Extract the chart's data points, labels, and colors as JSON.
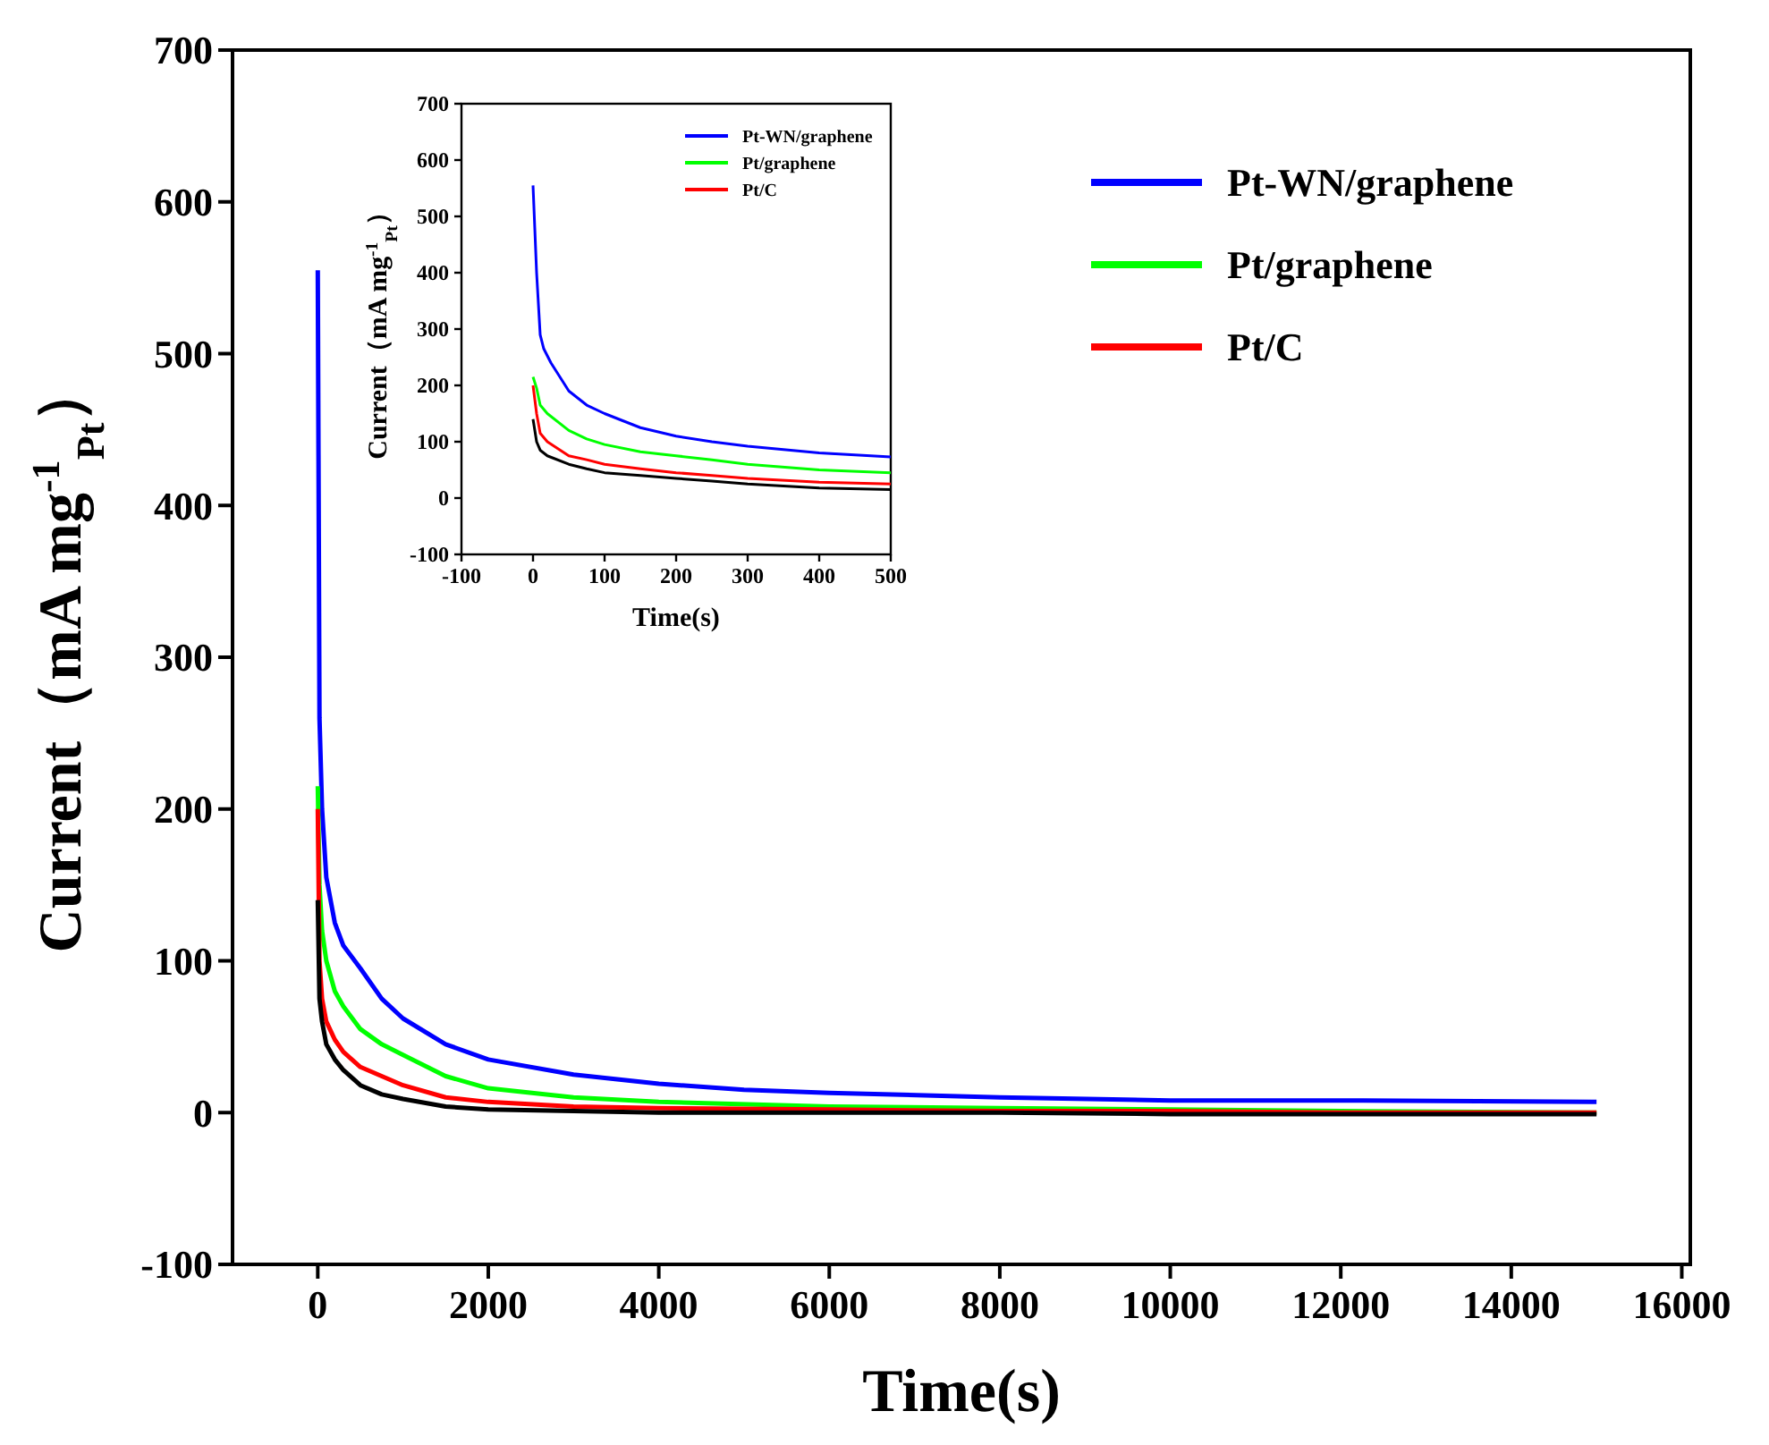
{
  "chart_data": [
    {
      "type": "line",
      "xlabel": "Time(s)",
      "ylabel": "Current（mA mg$^{-1}$$_{Pt}$）",
      "xlim": [
        -1000,
        16100
      ],
      "ylim": [
        -100,
        700
      ],
      "xticks": [
        0,
        2000,
        4000,
        6000,
        8000,
        10000,
        12000,
        14000,
        16000
      ],
      "yticks": [
        -100,
        0,
        100,
        200,
        300,
        400,
        500,
        600,
        700
      ],
      "legend": "top right",
      "grid": false,
      "series": [
        {
          "name": "Pt-WN/graphene",
          "color": "#0000ff",
          "x": [
            0,
            20,
            50,
            100,
            200,
            300,
            500,
            750,
            1000,
            1500,
            2000,
            3000,
            4000,
            5000,
            6000,
            8000,
            10000,
            12000,
            15000
          ],
          "values": [
            555,
            260,
            200,
            155,
            125,
            110,
            95,
            75,
            62,
            45,
            35,
            25,
            19,
            15,
            13,
            10,
            8,
            8,
            7
          ]
        },
        {
          "name": "Pt/graphene",
          "color": "#00ff00",
          "x": [
            0,
            20,
            50,
            100,
            200,
            300,
            500,
            750,
            1000,
            1500,
            2000,
            3000,
            4000,
            6000,
            8000,
            10000,
            12000,
            15000
          ],
          "values": [
            215,
            150,
            120,
            100,
            80,
            70,
            55,
            45,
            38,
            24,
            16,
            10,
            7,
            4,
            3,
            2,
            1,
            0
          ]
        },
        {
          "name": "Pt/C",
          "color": "#ff0000",
          "x": [
            0,
            20,
            50,
            100,
            200,
            300,
            500,
            750,
            1000,
            1500,
            2000,
            3000,
            4000,
            6000,
            8000,
            10000,
            12000,
            15000
          ],
          "values": [
            200,
            100,
            75,
            60,
            48,
            40,
            30,
            24,
            18,
            10,
            7,
            4,
            3,
            2,
            1,
            1,
            0,
            0
          ]
        },
        {
          "color": "#000000",
          "x": [
            0,
            20,
            50,
            100,
            200,
            300,
            500,
            750,
            1000,
            1500,
            2000,
            3000,
            4000,
            6000,
            8000,
            10000,
            12000,
            15000
          ],
          "values": [
            140,
            75,
            60,
            45,
            35,
            28,
            18,
            12,
            9,
            4,
            2,
            1,
            0,
            0,
            0,
            -1,
            -1,
            -1
          ]
        }
      ]
    },
    {
      "type": "line",
      "xlabel": "Time(s)",
      "ylabel": "Current（mA mg$^{-1}$$_{Pt}$）",
      "xlim": [
        -100,
        500
      ],
      "ylim": [
        -100,
        700
      ],
      "xticks": [
        -100,
        0,
        100,
        200,
        300,
        400,
        500
      ],
      "yticks": [
        -100,
        0,
        100,
        200,
        300,
        400,
        500,
        600,
        700
      ],
      "legend": "top right",
      "grid": false,
      "series": [
        {
          "name": "Pt-WN/graphene",
          "color": "#0000ff",
          "x": [
            0,
            5,
            10,
            15,
            25,
            50,
            75,
            100,
            150,
            200,
            250,
            300,
            400,
            500
          ],
          "values": [
            555,
            400,
            290,
            265,
            240,
            190,
            165,
            150,
            125,
            110,
            100,
            92,
            80,
            73
          ]
        },
        {
          "name": "Pt/graphene",
          "color": "#00ff00",
          "x": [
            0,
            5,
            10,
            20,
            50,
            75,
            100,
            150,
            200,
            250,
            300,
            400,
            500
          ],
          "values": [
            215,
            195,
            165,
            150,
            120,
            105,
            95,
            82,
            75,
            68,
            60,
            50,
            45
          ]
        },
        {
          "name": "Pt/C",
          "color": "#ff0000",
          "x": [
            0,
            5,
            10,
            20,
            50,
            75,
            100,
            150,
            200,
            250,
            300,
            400,
            500
          ],
          "values": [
            200,
            150,
            115,
            100,
            75,
            68,
            60,
            52,
            45,
            40,
            35,
            28,
            25
          ]
        },
        {
          "color": "#000000",
          "x": [
            0,
            5,
            10,
            20,
            50,
            75,
            100,
            150,
            200,
            250,
            300,
            400,
            500
          ],
          "values": [
            140,
            100,
            85,
            75,
            60,
            52,
            45,
            40,
            35,
            30,
            25,
            18,
            15
          ]
        }
      ]
    }
  ]
}
